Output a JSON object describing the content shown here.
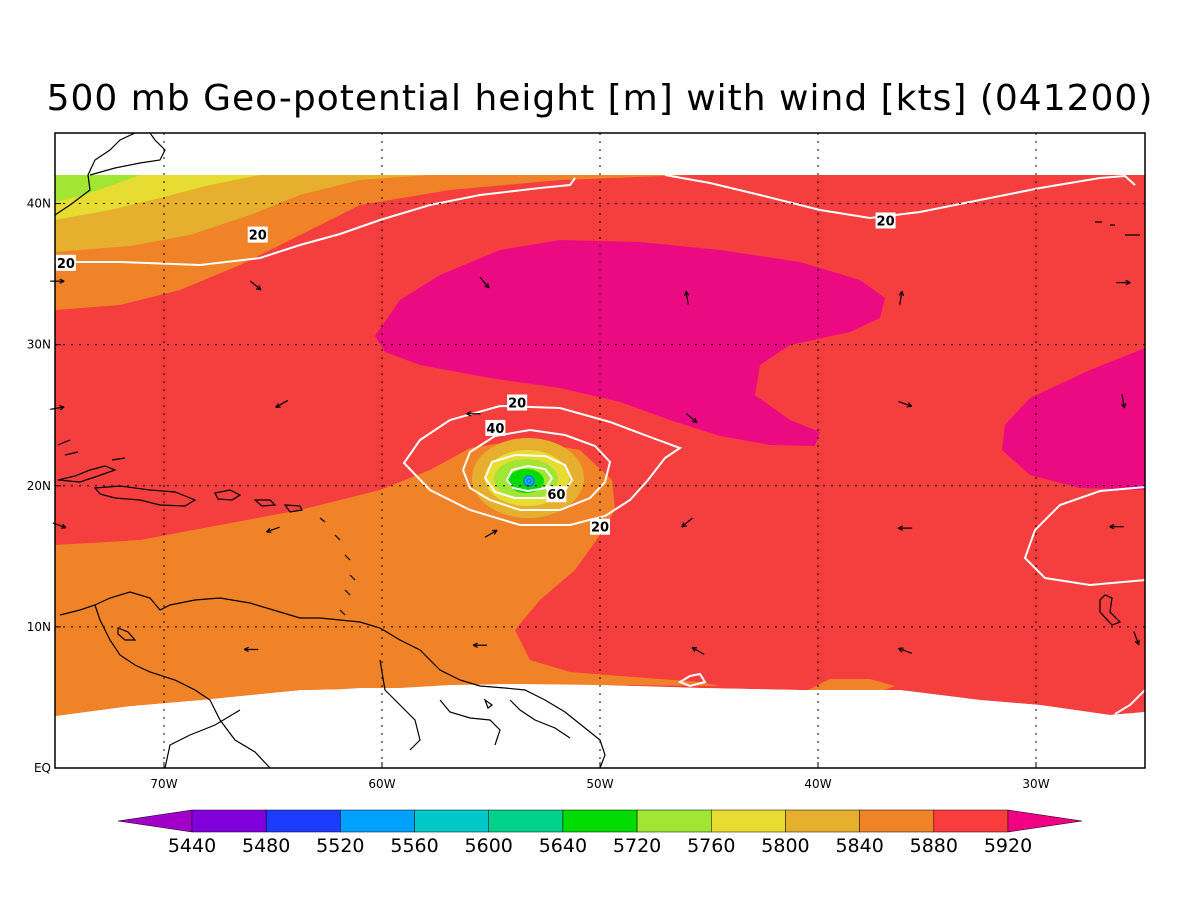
{
  "title": "500 mb Geo-potential height [m] with wind [kts] (041200)",
  "map": {
    "lon_range": [
      -75,
      -25
    ],
    "lat_range": [
      0,
      45
    ],
    "x_ticks": [
      {
        "lon": -70,
        "label": "70W"
      },
      {
        "lon": -60,
        "label": "60W"
      },
      {
        "lon": -50,
        "label": "50W"
      },
      {
        "lon": -40,
        "label": "40W"
      },
      {
        "lon": -30,
        "label": "30W"
      }
    ],
    "y_ticks": [
      {
        "lat": 0,
        "label": "EQ"
      },
      {
        "lat": 10,
        "label": "10N"
      },
      {
        "lat": 20,
        "label": "20N"
      },
      {
        "lat": 30,
        "label": "30N"
      },
      {
        "lat": 40,
        "label": "40N"
      }
    ],
    "contour_labels": [
      {
        "lon": -74.5,
        "lat": 35.8,
        "text": "20"
      },
      {
        "lon": -65.7,
        "lat": 37.8,
        "text": "20"
      },
      {
        "lon": -36.9,
        "lat": 38.8,
        "text": "20"
      },
      {
        "lon": -53.8,
        "lat": 25.9,
        "text": "20"
      },
      {
        "lon": -50.0,
        "lat": 17.1,
        "text": "20"
      },
      {
        "lon": -54.8,
        "lat": 24.1,
        "text": "40"
      },
      {
        "lon": -52.0,
        "lat": 19.4,
        "text": "60"
      }
    ],
    "wind_arrows": [
      {
        "lon": -74.9,
        "lat": 34.5,
        "dir": 0
      },
      {
        "lon": -65.8,
        "lat": 34.2,
        "dir": -40
      },
      {
        "lon": -55.3,
        "lat": 34.4,
        "dir": -50
      },
      {
        "lon": -46.0,
        "lat": 33.3,
        "dir": 100
      },
      {
        "lon": -36.2,
        "lat": 33.3,
        "dir": 80
      },
      {
        "lon": -26.0,
        "lat": 34.4,
        "dir": 0
      },
      {
        "lon": -74.9,
        "lat": 25.5,
        "dir": 10
      },
      {
        "lon": -64.6,
        "lat": 25.8,
        "dir": 210
      },
      {
        "lon": -55.8,
        "lat": 25.1,
        "dir": 180
      },
      {
        "lon": -45.8,
        "lat": 24.8,
        "dir": -40
      },
      {
        "lon": -36.0,
        "lat": 25.8,
        "dir": -20
      },
      {
        "lon": -26.0,
        "lat": 26.0,
        "dir": -80
      },
      {
        "lon": -74.8,
        "lat": 17.2,
        "dir": -20
      },
      {
        "lon": -65.0,
        "lat": 16.9,
        "dir": 200
      },
      {
        "lon": -55.0,
        "lat": 16.6,
        "dir": 30
      },
      {
        "lon": -46.0,
        "lat": 17.4,
        "dir": 220
      },
      {
        "lon": -36.0,
        "lat": 17.0,
        "dir": 180
      },
      {
        "lon": -26.3,
        "lat": 17.1,
        "dir": 180
      },
      {
        "lon": -66.0,
        "lat": 8.4,
        "dir": 180
      },
      {
        "lon": -55.5,
        "lat": 8.7,
        "dir": 180
      },
      {
        "lon": -45.5,
        "lat": 8.3,
        "dir": 150
      },
      {
        "lon": -36.0,
        "lat": 8.3,
        "dir": 160
      },
      {
        "lon": -25.4,
        "lat": 9.2,
        "dir": -70
      }
    ]
  },
  "colorbar": {
    "levels": [
      "5440",
      "5480",
      "5520",
      "5560",
      "5600",
      "5640",
      "5720",
      "5760",
      "5800",
      "5840",
      "5880",
      "5920"
    ],
    "colors": [
      "#a000c8",
      "#8200dc",
      "#1e3cff",
      "#00a0ff",
      "#00c8c8",
      "#00d28c",
      "#00dc00",
      "#a0e632",
      "#e6dc32",
      "#e6af2d",
      "#f08228",
      "#fa3c3c",
      "#f00082"
    ]
  },
  "colors": {
    "band_5920": "#ec0a82",
    "band_5880": "#f53e3e",
    "band_5840": "#f08228",
    "band_5800": "#e6af2d",
    "band_5760": "#e6dc32",
    "band_5720": "#a0e632",
    "band_5640": "#00dc00",
    "coast": "#000000",
    "contour": "#ffffff"
  }
}
